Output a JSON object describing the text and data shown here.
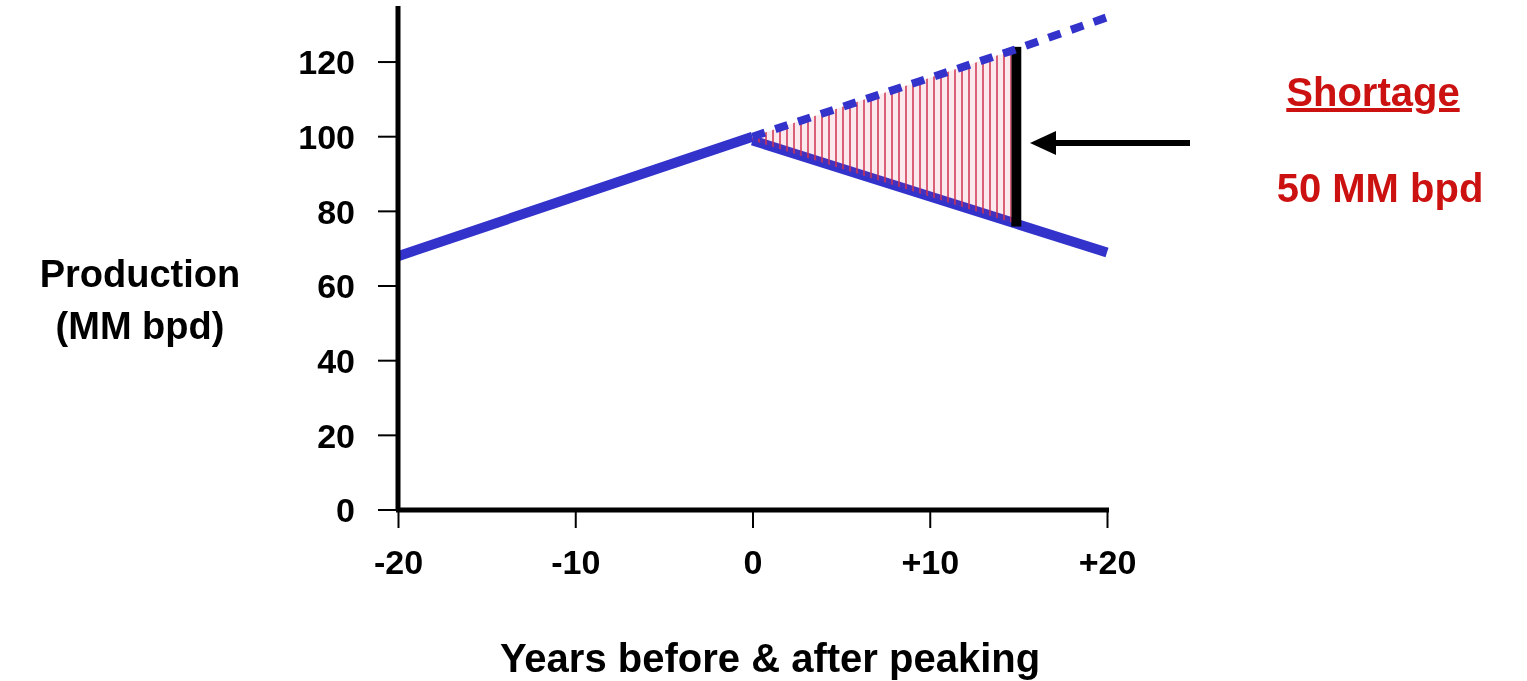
{
  "chart_data": {
    "type": "line",
    "xlabel": "Years before & after peaking",
    "ylabel": "Production\n(MM bpd)",
    "xlim": [
      -20,
      20
    ],
    "ylim": [
      0,
      135
    ],
    "xticks": [
      {
        "value": -20,
        "label": "-20"
      },
      {
        "value": -10,
        "label": "-10"
      },
      {
        "value": 0,
        "label": "0"
      },
      {
        "value": 10,
        "label": "+10"
      },
      {
        "value": 20,
        "label": "+20"
      }
    ],
    "yticks": [
      0,
      20,
      40,
      60,
      80,
      100,
      120
    ],
    "series": [
      {
        "type": "line",
        "color": "#3333cc",
        "x": [
          -20,
          0
        ],
        "values": [
          68,
          100
        ],
        "line_style": "solid"
      },
      {
        "type": "line",
        "color": "#3333cc",
        "x": [
          0,
          20
        ],
        "values": [
          99,
          69
        ],
        "line_style": "solid"
      },
      {
        "type": "line",
        "color": "#3333cc",
        "x": [
          0,
          14.6,
          20
        ],
        "values": [
          100,
          123,
          132
        ],
        "lower": [
          99,
          77,
          null
        ],
        "upper": [
          100,
          123,
          null
        ],
        "line_style": "dashed"
      }
    ],
    "annotations": [
      "Shortage",
      "50 MM bpd"
    ]
  }
}
